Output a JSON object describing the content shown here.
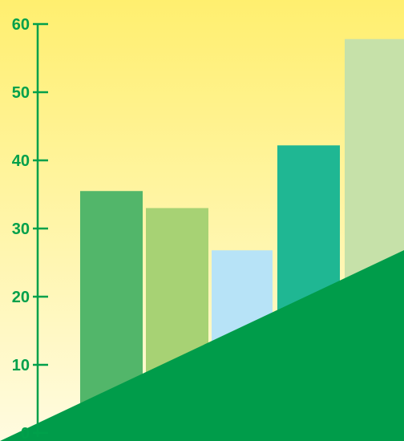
{
  "chart_data": {
    "type": "bar",
    "categories": [
      "",
      "",
      "",
      "",
      ""
    ],
    "values": [
      35.5,
      33,
      26.8,
      42.2,
      57.8
    ],
    "ylim": [
      0,
      60
    ],
    "yticks": [
      "0",
      "10",
      "20",
      "30",
      "40",
      "50",
      "60"
    ],
    "grid": false,
    "legend": "none",
    "title": "",
    "xlabel": "",
    "ylabel": "",
    "colors": {
      "bars": [
        "#52b66a",
        "#a7d274",
        "#b7e3f7",
        "#1fb793",
        "#c6e1a9"
      ],
      "axis": "#00a04b",
      "ground": "#009c4a",
      "background_top": "#ffef6f",
      "background_bottom": "#fffbe0"
    }
  }
}
